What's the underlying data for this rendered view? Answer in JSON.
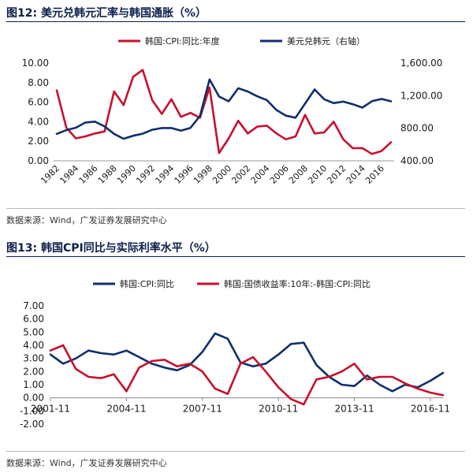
{
  "figure12": {
    "number": "图12:",
    "title": "美元兑韩元汇率与韩国通胀（%）",
    "source": "数据来源：Wind，广发证券发展研究中心"
  },
  "figure13": {
    "number": "图13:",
    "title": "韩国CPI同比与实际利率水平（%）",
    "source": "数据来源：Wind，广发证券发展研究中心"
  },
  "colors": {
    "red": "#c8102e",
    "navy": "#0f2f6b",
    "text": "#1a1a1a",
    "rule": "#0b1f4d"
  },
  "chart_data": [
    {
      "type": "line",
      "title": "美元兑韩元汇率与韩国通胀（%）",
      "x": [
        1982,
        1983,
        1984,
        1985,
        1986,
        1987,
        1988,
        1989,
        1990,
        1991,
        1992,
        1993,
        1994,
        1995,
        1996,
        1997,
        1998,
        1999,
        2000,
        2001,
        2002,
        2003,
        2004,
        2005,
        2006,
        2007,
        2008,
        2009,
        2010,
        2011,
        2012,
        2013,
        2014,
        2015,
        2016,
        2017
      ],
      "xticks": [
        "1982",
        "1984",
        "1986",
        "1988",
        "1990",
        "1992",
        "1994",
        "1996",
        "1998",
        "2000",
        "2002",
        "2004",
        "2006",
        "2008",
        "2010",
        "2012",
        "2014",
        "2016"
      ],
      "left_axis": {
        "min": 0,
        "max": 10,
        "ticks": [
          "0.00",
          "2.00",
          "4.00",
          "6.00",
          "8.00",
          "10.00"
        ]
      },
      "right_axis": {
        "min": 400,
        "max": 1600,
        "ticks": [
          "400.00",
          "800.00",
          "1,200.00",
          "1,600.00"
        ]
      },
      "legend": "top",
      "series": [
        {
          "name": "韩国:CPI:同比:年度",
          "color": "#c8102e",
          "axis": "left",
          "values": [
            7.2,
            3.4,
            2.3,
            2.5,
            2.8,
            3.0,
            7.1,
            5.7,
            8.6,
            9.3,
            6.2,
            4.8,
            6.3,
            4.5,
            4.9,
            4.4,
            7.5,
            0.8,
            2.3,
            4.1,
            2.8,
            3.5,
            3.6,
            2.8,
            2.2,
            2.5,
            4.7,
            2.8,
            2.9,
            4.0,
            2.2,
            1.3,
            1.3,
            0.7,
            1.0,
            1.9
          ]
        },
        {
          "name": "美元兑韩元（右轴）",
          "color": "#0f2f6b",
          "axis": "right",
          "values": [
            731,
            776,
            806,
            870,
            881,
            823,
            731,
            671,
            708,
            733,
            781,
            803,
            803,
            771,
            805,
            951,
            1399,
            1190,
            1131,
            1291,
            1251,
            1192,
            1145,
            1024,
            955,
            929,
            1103,
            1276,
            1156,
            1108,
            1127,
            1095,
            1053,
            1132,
            1160,
            1131
          ]
        }
      ]
    },
    {
      "type": "line",
      "title": "韩国CPI同比与实际利率水平（%）",
      "x": [
        "2001-11",
        "2002-05",
        "2002-11",
        "2003-05",
        "2003-11",
        "2004-05",
        "2004-11",
        "2005-05",
        "2005-11",
        "2006-05",
        "2006-11",
        "2007-05",
        "2007-11",
        "2008-05",
        "2008-11",
        "2009-05",
        "2009-11",
        "2010-05",
        "2010-11",
        "2011-05",
        "2011-11",
        "2012-05",
        "2012-11",
        "2013-05",
        "2013-11",
        "2014-05",
        "2014-11",
        "2015-05",
        "2015-11",
        "2016-05",
        "2016-11",
        "2017-05"
      ],
      "xticks": [
        "2001-11",
        "2004-11",
        "2007-11",
        "2010-11",
        "2013-11",
        "2016-11"
      ],
      "y_axis": {
        "min": -2,
        "max": 7,
        "ticks": [
          "-2.00",
          "-1.00",
          "0.00",
          "1.00",
          "2.00",
          "3.00",
          "4.00",
          "5.00",
          "6.00",
          "7.00"
        ]
      },
      "legend": "top",
      "series": [
        {
          "name": "韩国:CPI:同比",
          "color": "#0f2f6b",
          "values": [
            3.3,
            2.6,
            3.0,
            3.6,
            3.4,
            3.3,
            3.6,
            3.1,
            2.6,
            2.3,
            2.1,
            2.5,
            3.5,
            4.9,
            4.5,
            2.7,
            2.4,
            2.6,
            3.3,
            4.1,
            4.2,
            2.5,
            1.6,
            1.0,
            0.9,
            1.7,
            1.0,
            0.5,
            1.0,
            0.8,
            1.3,
            1.9
          ]
        },
        {
          "name": "韩国:国债收益率:10年:-韩国:CPI:同比",
          "color": "#c8102e",
          "values": [
            3.6,
            4.0,
            2.2,
            1.6,
            1.5,
            1.8,
            0.5,
            2.3,
            2.8,
            2.9,
            2.4,
            2.6,
            2.0,
            0.7,
            0.3,
            2.6,
            3.1,
            2.0,
            0.8,
            -0.1,
            -0.5,
            1.4,
            1.6,
            2.0,
            2.6,
            1.4,
            1.6,
            1.6,
            1.1,
            0.7,
            0.4,
            0.2
          ]
        }
      ]
    }
  ]
}
